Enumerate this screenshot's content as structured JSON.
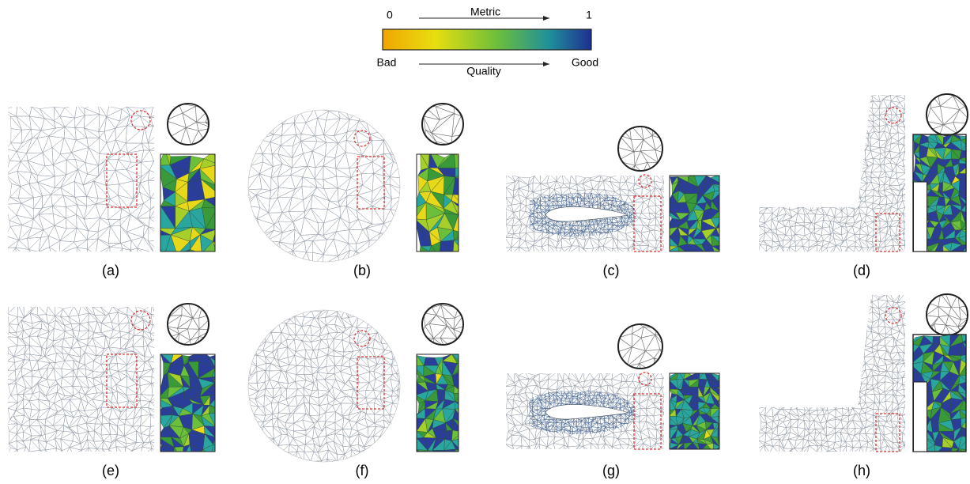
{
  "legend": {
    "min_label": "0",
    "metric_label": "Metric",
    "max_label": "1",
    "bad_label": "Bad",
    "quality_label": "Quality",
    "good_label": "Good"
  },
  "panels": [
    {
      "label": "(a)"
    },
    {
      "label": "(b)"
    },
    {
      "label": "(c)"
    },
    {
      "label": "(d)"
    },
    {
      "label": "(e)"
    },
    {
      "label": "(f)"
    },
    {
      "label": "(g)"
    },
    {
      "label": "(h)"
    }
  ]
}
